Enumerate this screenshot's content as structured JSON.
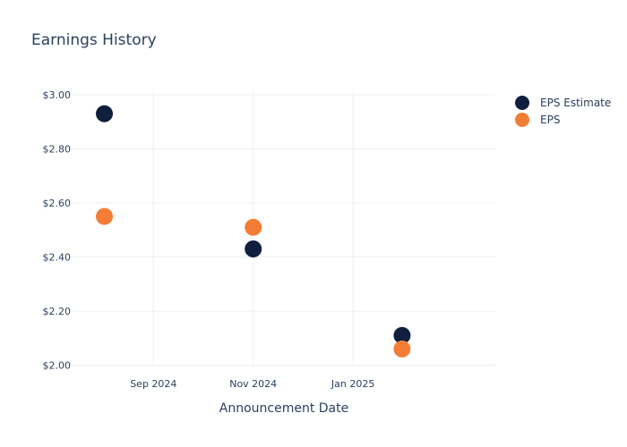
{
  "chart_data": {
    "type": "scatter",
    "title": "Earnings History",
    "xlabel": "Announcement Date",
    "ylabel": "",
    "x_ticks": [
      {
        "date": "2024-09-01",
        "label": "Sep 2024"
      },
      {
        "date": "2024-11-01",
        "label": "Nov 2024"
      },
      {
        "date": "2025-01-01",
        "label": "Jan 2025"
      }
    ],
    "y_ticks": [
      {
        "value": 2.0,
        "label": "$2.00"
      },
      {
        "value": 2.2,
        "label": "$2.20"
      },
      {
        "value": 2.4,
        "label": "$2.40"
      },
      {
        "value": 2.6,
        "label": "$2.60"
      },
      {
        "value": 2.8,
        "label": "$2.80"
      },
      {
        "value": 3.0,
        "label": "$3.00"
      }
    ],
    "xlim": [
      "2024-07-13",
      "2025-03-29"
    ],
    "ylim": [
      1.995,
      3.02
    ],
    "grid": true,
    "legend_position": "top-right",
    "series": [
      {
        "name": "EPS Estimate",
        "color": "#0f1f3d",
        "points": [
          {
            "x": "2024-08-02",
            "y": 2.93
          },
          {
            "x": "2024-11-01",
            "y": 2.43
          },
          {
            "x": "2025-01-31",
            "y": 2.11
          }
        ]
      },
      {
        "name": "EPS",
        "color": "#f47d35",
        "points": [
          {
            "x": "2024-08-02",
            "y": 2.55
          },
          {
            "x": "2024-11-01",
            "y": 2.51
          },
          {
            "x": "2025-01-31",
            "y": 2.06
          }
        ]
      }
    ]
  }
}
